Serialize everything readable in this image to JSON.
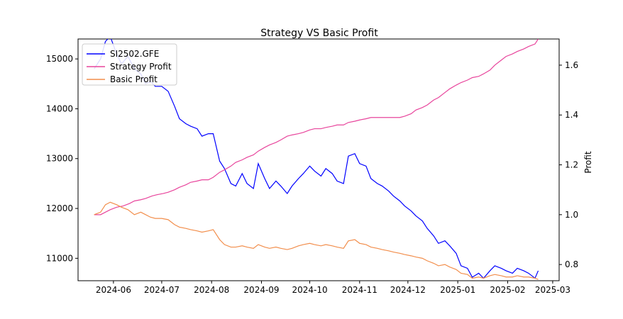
{
  "chart_data": {
    "type": "line",
    "title": "Strategy VS Basic Profit",
    "xlabel": "",
    "ylabel_left": "",
    "ylabel_right": "Profit",
    "x_range": [
      "2024-05-10",
      "2025-03-05"
    ],
    "ylim_left": [
      10550,
      15400
    ],
    "ylim_right": [
      0.735,
      1.705
    ],
    "x_ticks": [
      "2024-06",
      "2024-07",
      "2024-08",
      "2024-09",
      "2024-10",
      "2024-11",
      "2024-12",
      "2025-01",
      "2025-02",
      "2025-03"
    ],
    "y_ticks_left": [
      11000,
      12000,
      13000,
      14000,
      15000
    ],
    "y_ticks_right": [
      0.8,
      1.0,
      1.2,
      1.4,
      1.6
    ],
    "grid": false,
    "legend_position": "top-left",
    "series": [
      {
        "name": "SI2502.GFE",
        "axis": "left",
        "color": "#0000ff",
        "x": [
          "2024-05-20",
          "2024-05-24",
          "2024-05-27",
          "2024-05-30",
          "2024-06-03",
          "2024-06-06",
          "2024-06-10",
          "2024-06-14",
          "2024-06-18",
          "2024-06-21",
          "2024-06-24",
          "2024-06-27",
          "2024-07-01",
          "2024-07-05",
          "2024-07-09",
          "2024-07-12",
          "2024-07-16",
          "2024-07-19",
          "2024-07-23",
          "2024-07-26",
          "2024-07-30",
          "2024-08-02",
          "2024-08-06",
          "2024-08-09",
          "2024-08-13",
          "2024-08-16",
          "2024-08-20",
          "2024-08-23",
          "2024-08-27",
          "2024-08-30",
          "2024-09-03",
          "2024-09-06",
          "2024-09-10",
          "2024-09-13",
          "2024-09-17",
          "2024-09-20",
          "2024-09-24",
          "2024-09-27",
          "2024-10-01",
          "2024-10-04",
          "2024-10-08",
          "2024-10-11",
          "2024-10-15",
          "2024-10-18",
          "2024-10-22",
          "2024-10-25",
          "2024-10-29",
          "2024-11-01",
          "2024-11-05",
          "2024-11-08",
          "2024-11-12",
          "2024-11-15",
          "2024-11-19",
          "2024-11-22",
          "2024-11-26",
          "2024-11-29",
          "2024-12-03",
          "2024-12-06",
          "2024-12-10",
          "2024-12-13",
          "2024-12-17",
          "2024-12-20",
          "2024-12-24",
          "2024-12-27",
          "2024-12-31",
          "2025-01-03",
          "2025-01-07",
          "2025-01-10",
          "2025-01-14",
          "2025-01-17",
          "2025-01-21",
          "2025-01-24",
          "2025-01-28",
          "2025-01-31",
          "2025-02-04",
          "2025-02-07",
          "2025-02-11",
          "2025-02-14",
          "2025-02-18",
          "2025-02-20"
        ],
        "values": [
          14800,
          15000,
          15350,
          15450,
          15100,
          14900,
          15050,
          14800,
          14700,
          14500,
          14550,
          14450,
          14450,
          14350,
          14050,
          13800,
          13700,
          13650,
          13600,
          13450,
          13500,
          13500,
          12950,
          12800,
          12500,
          12450,
          12700,
          12500,
          12400,
          12900,
          12600,
          12400,
          12550,
          12450,
          12300,
          12450,
          12600,
          12700,
          12850,
          12750,
          12650,
          12800,
          12700,
          12550,
          12500,
          13050,
          13100,
          12900,
          12850,
          12600,
          12500,
          12450,
          12350,
          12250,
          12150,
          12050,
          11950,
          11850,
          11750,
          11600,
          11450,
          11300,
          11350,
          11250,
          11100,
          10850,
          10800,
          10620,
          10700,
          10600,
          10750,
          10850,
          10800,
          10750,
          10700,
          10800,
          10750,
          10700,
          10600,
          10750
        ]
      },
      {
        "name": "Strategy Profit",
        "axis": "right",
        "color": "#e8459c",
        "x": [
          "2024-05-20",
          "2024-05-24",
          "2024-05-27",
          "2024-05-30",
          "2024-06-03",
          "2024-06-07",
          "2024-06-11",
          "2024-06-14",
          "2024-06-18",
          "2024-06-21",
          "2024-06-25",
          "2024-06-28",
          "2024-07-02",
          "2024-07-05",
          "2024-07-09",
          "2024-07-12",
          "2024-07-16",
          "2024-07-19",
          "2024-07-23",
          "2024-07-26",
          "2024-07-30",
          "2024-08-02",
          "2024-08-06",
          "2024-08-09",
          "2024-08-13",
          "2024-08-16",
          "2024-08-20",
          "2024-08-23",
          "2024-08-27",
          "2024-08-30",
          "2024-09-03",
          "2024-09-06",
          "2024-09-10",
          "2024-09-13",
          "2024-09-17",
          "2024-09-20",
          "2024-09-24",
          "2024-09-27",
          "2024-10-01",
          "2024-10-04",
          "2024-10-08",
          "2024-10-11",
          "2024-10-15",
          "2024-10-18",
          "2024-10-22",
          "2024-10-25",
          "2024-10-29",
          "2024-11-01",
          "2024-11-05",
          "2024-11-08",
          "2024-11-12",
          "2024-11-15",
          "2024-11-19",
          "2024-11-22",
          "2024-11-26",
          "2024-11-29",
          "2024-12-03",
          "2024-12-06",
          "2024-12-10",
          "2024-12-13",
          "2024-12-17",
          "2024-12-20",
          "2024-12-24",
          "2024-12-27",
          "2024-12-31",
          "2025-01-03",
          "2025-01-07",
          "2025-01-10",
          "2025-01-14",
          "2025-01-17",
          "2025-01-21",
          "2025-01-24",
          "2025-01-28",
          "2025-01-31",
          "2025-02-04",
          "2025-02-07",
          "2025-02-11",
          "2025-02-14",
          "2025-02-18",
          "2025-02-20"
        ],
        "values": [
          1.0,
          1.0,
          1.01,
          1.02,
          1.03,
          1.035,
          1.045,
          1.055,
          1.06,
          1.065,
          1.075,
          1.08,
          1.085,
          1.09,
          1.1,
          1.11,
          1.12,
          1.13,
          1.135,
          1.14,
          1.14,
          1.15,
          1.17,
          1.18,
          1.195,
          1.21,
          1.22,
          1.23,
          1.24,
          1.255,
          1.27,
          1.28,
          1.29,
          1.3,
          1.315,
          1.32,
          1.325,
          1.33,
          1.34,
          1.345,
          1.345,
          1.35,
          1.355,
          1.36,
          1.36,
          1.37,
          1.375,
          1.38,
          1.385,
          1.39,
          1.39,
          1.39,
          1.39,
          1.39,
          1.39,
          1.395,
          1.405,
          1.42,
          1.43,
          1.44,
          1.46,
          1.47,
          1.49,
          1.505,
          1.52,
          1.53,
          1.54,
          1.55,
          1.555,
          1.565,
          1.58,
          1.6,
          1.62,
          1.635,
          1.645,
          1.655,
          1.665,
          1.675,
          1.685,
          1.705
        ]
      },
      {
        "name": "Basic Profit",
        "axis": "right",
        "color": "#f28e4c",
        "x": [
          "2024-05-20",
          "2024-05-24",
          "2024-05-27",
          "2024-05-30",
          "2024-06-03",
          "2024-06-06",
          "2024-06-10",
          "2024-06-14",
          "2024-06-18",
          "2024-06-21",
          "2024-06-24",
          "2024-06-27",
          "2024-07-01",
          "2024-07-05",
          "2024-07-09",
          "2024-07-12",
          "2024-07-16",
          "2024-07-19",
          "2024-07-23",
          "2024-07-26",
          "2024-07-30",
          "2024-08-02",
          "2024-08-06",
          "2024-08-09",
          "2024-08-13",
          "2024-08-16",
          "2024-08-20",
          "2024-08-23",
          "2024-08-27",
          "2024-08-30",
          "2024-09-03",
          "2024-09-06",
          "2024-09-10",
          "2024-09-13",
          "2024-09-17",
          "2024-09-20",
          "2024-09-24",
          "2024-09-27",
          "2024-10-01",
          "2024-10-04",
          "2024-10-08",
          "2024-10-11",
          "2024-10-15",
          "2024-10-18",
          "2024-10-22",
          "2024-10-25",
          "2024-10-29",
          "2024-11-01",
          "2024-11-05",
          "2024-11-08",
          "2024-11-12",
          "2024-11-15",
          "2024-11-19",
          "2024-11-22",
          "2024-11-26",
          "2024-11-29",
          "2024-12-03",
          "2024-12-06",
          "2024-12-10",
          "2024-12-13",
          "2024-12-17",
          "2024-12-20",
          "2024-12-24",
          "2024-12-27",
          "2024-12-31",
          "2025-01-03",
          "2025-01-07",
          "2025-01-10",
          "2025-01-14",
          "2025-01-17",
          "2025-01-21",
          "2025-01-24",
          "2025-01-28",
          "2025-01-31",
          "2025-02-04",
          "2025-02-07",
          "2025-02-11",
          "2025-02-14",
          "2025-02-18",
          "2025-02-20"
        ],
        "values": [
          1.0,
          1.01,
          1.04,
          1.05,
          1.04,
          1.03,
          1.02,
          1.0,
          1.01,
          1.0,
          0.99,
          0.985,
          0.985,
          0.98,
          0.96,
          0.95,
          0.945,
          0.94,
          0.935,
          0.93,
          0.935,
          0.94,
          0.9,
          0.88,
          0.87,
          0.87,
          0.875,
          0.87,
          0.865,
          0.88,
          0.87,
          0.865,
          0.87,
          0.865,
          0.86,
          0.865,
          0.875,
          0.88,
          0.885,
          0.88,
          0.875,
          0.88,
          0.875,
          0.87,
          0.865,
          0.895,
          0.9,
          0.885,
          0.88,
          0.87,
          0.865,
          0.86,
          0.855,
          0.85,
          0.845,
          0.84,
          0.835,
          0.83,
          0.825,
          0.815,
          0.805,
          0.795,
          0.8,
          0.79,
          0.78,
          0.765,
          0.76,
          0.745,
          0.75,
          0.745,
          0.755,
          0.76,
          0.755,
          0.75,
          0.75,
          0.755,
          0.75,
          0.75,
          0.745,
          0.74
        ]
      }
    ]
  }
}
